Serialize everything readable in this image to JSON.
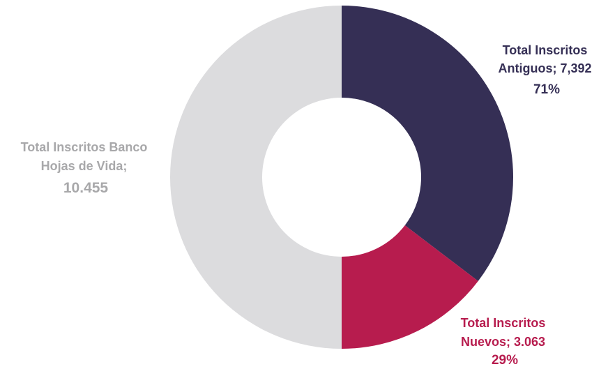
{
  "chart_data": {
    "type": "pie",
    "style": "donut",
    "legend": "none",
    "slices": [
      {
        "id": "antiguos",
        "value": 7392,
        "label_lines": [
          "Total Inscritos",
          "Antiguos; 7,392"
        ],
        "percent_label": "71%",
        "color": "#352f55"
      },
      {
        "id": "nuevos",
        "value": 3063,
        "label_lines": [
          "Total Inscritos",
          "Nuevos; 3.063"
        ],
        "percent_label": "29%",
        "color": "#b71c4e"
      },
      {
        "id": "banco",
        "value": 10455,
        "label_lines": [
          "Total Inscritos Banco",
          "Hojas de Vida;"
        ],
        "percent_label": "10.455",
        "color": "#dcdcde"
      }
    ],
    "label_colors": {
      "antiguos": "#352f55",
      "nuevos": "#b71c4e",
      "banco": "#a8a8aa"
    }
  }
}
